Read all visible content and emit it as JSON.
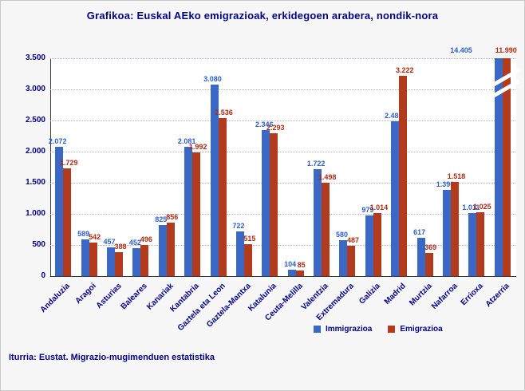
{
  "chart_data": {
    "type": "bar",
    "title": "Grafikoa: Euskal AEko emigrazioak, erkidegoen arabera, nondik-nora",
    "categories": [
      "Andaluzia",
      "Aragoi",
      "Asturias",
      "Baleares",
      "Kanariak",
      "Kantabria",
      "Gaztela eta Leon",
      "Gaztela-Mantxa",
      "Katalunia",
      "Ceuta-Melilla",
      "Valentzia",
      "Extremadura",
      "Galizia",
      "Madrid",
      "Murtzia",
      "Nafarroa",
      "Errioxa",
      "Atzerria"
    ],
    "series": [
      {
        "name": "Immigrazioa",
        "color": "#3a68c4",
        "values": [
          2072,
          589,
          457,
          452,
          825,
          2081,
          3080,
          722,
          2346,
          104,
          1722,
          580,
          979,
          2485,
          617,
          1390,
          1011,
          14405
        ]
      },
      {
        "name": "Emigrazioa",
        "color": "#b23a1d",
        "values": [
          1729,
          542,
          388,
          496,
          856,
          1992,
          2536,
          515,
          2293,
          85,
          1498,
          487,
          1014,
          3222,
          369,
          1518,
          1025,
          11990
        ]
      }
    ],
    "xlabel": "",
    "ylabel": "",
    "ylim": [
      0,
      3500
    ],
    "ytick_step": 500,
    "ytick_labels": [
      "0",
      "500",
      "1.000",
      "1.500",
      "2.000",
      "2.500",
      "3.000",
      "3.500"
    ],
    "grid": true,
    "legend_position": "bottom",
    "axis_break_note": "Atzerria bars exceed axis maximum; shown with break marks",
    "axis_break_labels": [
      "14.405",
      "11.990"
    ]
  },
  "page": {
    "source": "Iturria: Eustat. Migrazio-mugimenduen estatistika"
  },
  "colors": {
    "value_label_immigrazioa": "#2d5fd0",
    "value_label_emigrazioa": "#b02a10",
    "axis_text": "#00008b",
    "grid": "#b5b0cf"
  }
}
